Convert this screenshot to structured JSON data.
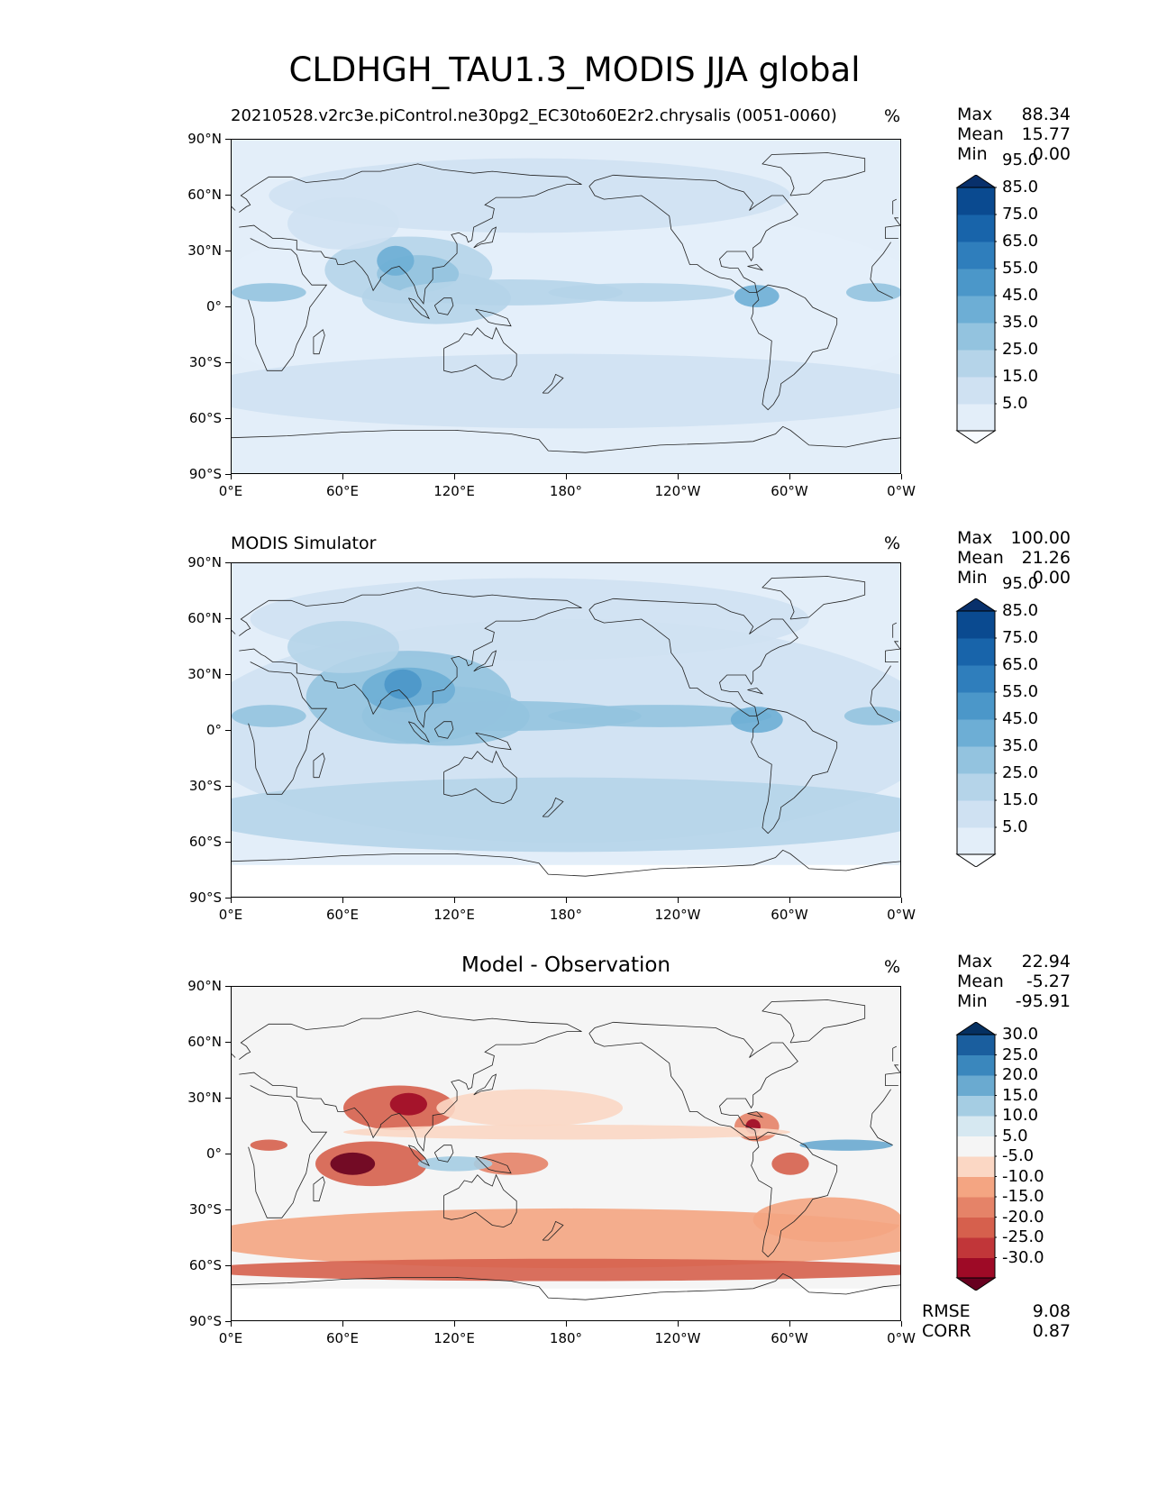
{
  "title": "CLDHGH_TAU1.3_MODIS JJA global",
  "lat_ticks": [
    "90°N",
    "60°N",
    "30°N",
    "0°",
    "30°S",
    "60°S",
    "90°S"
  ],
  "lon_ticks": [
    "0°E",
    "60°E",
    "120°E",
    "180°",
    "120°W",
    "60°W",
    "0°W"
  ],
  "panels": [
    {
      "name": "test",
      "title_left": "20210528.v2rc3e.piControl.ne30pg2_EC30to60E2r2.chrysalis (0051-0060)",
      "title_center": "",
      "units": "%",
      "stats": {
        "labels": [
          "Max",
          "Mean",
          "Min"
        ],
        "values": [
          "88.34",
          "15.77",
          "0.00"
        ]
      },
      "colorbar": {
        "levels": [
          "5.0",
          "15.0",
          "25.0",
          "35.0",
          "45.0",
          "55.0",
          "65.0",
          "75.0",
          "85.0",
          "95.0"
        ],
        "colors": [
          "#f7fbff",
          "#e3eef9",
          "#cfe1f2",
          "#b5d4e9",
          "#93c3df",
          "#6daed5",
          "#4b97c9",
          "#2f7ebc",
          "#1864aa",
          "#0a4a90",
          "#08306b"
        ]
      }
    },
    {
      "name": "reference",
      "title_left": "MODIS Simulator",
      "title_center": "",
      "units": "%",
      "stats": {
        "labels": [
          "Max",
          "Mean",
          "Min"
        ],
        "values": [
          "100.00",
          "21.26",
          "0.00"
        ]
      },
      "colorbar": {
        "levels": [
          "5.0",
          "15.0",
          "25.0",
          "35.0",
          "45.0",
          "55.0",
          "65.0",
          "75.0",
          "85.0",
          "95.0"
        ],
        "colors": [
          "#f7fbff",
          "#e3eef9",
          "#cfe1f2",
          "#b5d4e9",
          "#93c3df",
          "#6daed5",
          "#4b97c9",
          "#2f7ebc",
          "#1864aa",
          "#0a4a90",
          "#08306b"
        ]
      }
    },
    {
      "name": "difference",
      "title_left": "",
      "title_center": "Model - Observation",
      "units": "%",
      "stats": {
        "labels": [
          "Max",
          "Mean",
          "Min"
        ],
        "values": [
          "22.94",
          "-5.27",
          "-95.91"
        ]
      },
      "colorbar": {
        "levels": [
          "-30.0",
          "-25.0",
          "-20.0",
          "-15.0",
          "-10.0",
          "-5.0",
          "5.0",
          "10.0",
          "15.0",
          "20.0",
          "25.0",
          "30.0"
        ],
        "colors": [
          "#67001f",
          "#9e0a26",
          "#c13639",
          "#d6604d",
          "#e58368",
          "#f4a582",
          "#fbd7c4",
          "#f5f5f5",
          "#d6e8f1",
          "#a5cde3",
          "#6aaad0",
          "#3a87bd",
          "#1a5e9e",
          "#053061"
        ]
      },
      "metrics": {
        "labels": [
          "RMSE",
          "CORR"
        ],
        "values": [
          "9.08",
          "0.87"
        ]
      }
    }
  ]
}
